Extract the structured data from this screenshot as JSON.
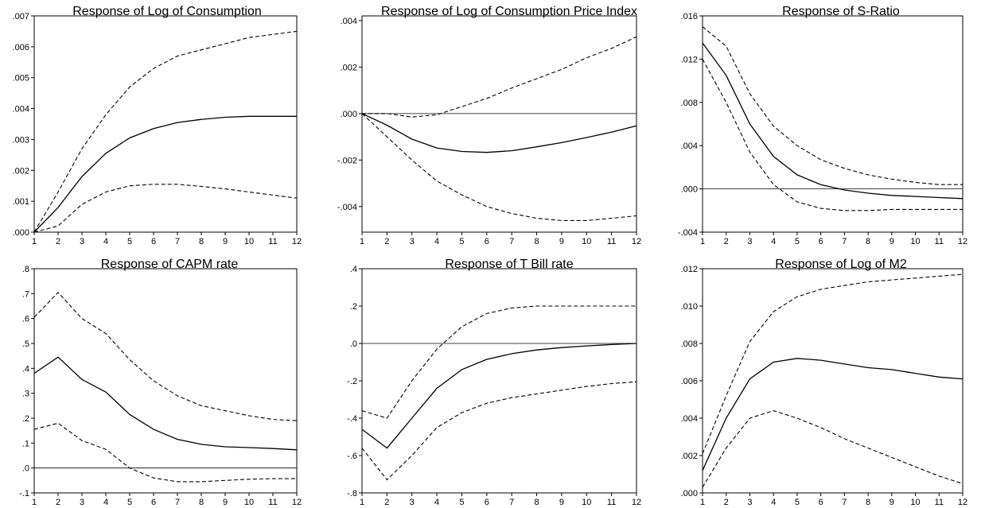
{
  "colors": {
    "line": "#000000",
    "background": "#ffffff"
  },
  "chart_data": [
    {
      "type": "line",
      "title": "Response of Log of Consumption",
      "x": [
        1,
        2,
        3,
        4,
        5,
        6,
        7,
        8,
        9,
        10,
        11,
        12
      ],
      "xticks": [
        "1",
        "2",
        "3",
        "4",
        "5",
        "6",
        "7",
        "8",
        "9",
        "10",
        "11",
        "12"
      ],
      "ylim": [
        0,
        0.007
      ],
      "yticks": [
        {
          "v": 0.0,
          "label": ".000"
        },
        {
          "v": 0.001,
          "label": ".001"
        },
        {
          "v": 0.002,
          "label": ".002"
        },
        {
          "v": 0.003,
          "label": ".003"
        },
        {
          "v": 0.004,
          "label": ".004"
        },
        {
          "v": 0.005,
          "label": ".005"
        },
        {
          "v": 0.006,
          "label": ".006"
        },
        {
          "v": 0.007,
          "label": ".007"
        }
      ],
      "zero_line": false,
      "series": [
        {
          "style": "solid",
          "values": [
            0.0,
            0.0008,
            0.0018,
            0.00255,
            0.00305,
            0.00335,
            0.00355,
            0.00365,
            0.00372,
            0.00375,
            0.00375,
            0.00375
          ]
        },
        {
          "style": "dashed",
          "values": [
            0.0,
            0.0013,
            0.0027,
            0.0038,
            0.0047,
            0.0053,
            0.0057,
            0.0059,
            0.0061,
            0.0063,
            0.0064,
            0.0065
          ]
        },
        {
          "style": "dashed",
          "values": [
            0.0,
            0.0002,
            0.0009,
            0.0013,
            0.0015,
            0.00155,
            0.00155,
            0.00148,
            0.0014,
            0.0013,
            0.0012,
            0.0011
          ]
        }
      ]
    },
    {
      "type": "line",
      "title": "Response of Log of Consumption Price Index",
      "x": [
        1,
        2,
        3,
        4,
        5,
        6,
        7,
        8,
        9,
        10,
        11,
        12
      ],
      "xticks": [
        "1",
        "2",
        "3",
        "4",
        "5",
        "6",
        "7",
        "8",
        "9",
        "10",
        "11",
        "12"
      ],
      "ylim": [
        -0.0051,
        0.0042
      ],
      "yticks": [
        {
          "v": -0.004,
          "label": "-.004"
        },
        {
          "v": -0.002,
          "label": "-.002"
        },
        {
          "v": 0.0,
          "label": ".000"
        },
        {
          "v": 0.002,
          "label": ".002"
        },
        {
          "v": 0.004,
          "label": ".004"
        }
      ],
      "zero_line": true,
      "series": [
        {
          "style": "solid",
          "values": [
            0.0,
            -0.0005,
            -0.0011,
            -0.00148,
            -0.00163,
            -0.00167,
            -0.0016,
            -0.00143,
            -0.00125,
            -0.00103,
            -0.0008,
            -0.00053
          ]
        },
        {
          "style": "dashed",
          "values": [
            0.0,
            0.0,
            -0.00015,
            -5e-05,
            0.0003,
            0.00065,
            0.0011,
            0.0015,
            0.0019,
            0.0024,
            0.0028,
            0.0033
          ]
        },
        {
          "style": "dashed",
          "values": [
            0.0,
            -0.001,
            -0.002,
            -0.0029,
            -0.0035,
            -0.004,
            -0.0043,
            -0.0045,
            -0.0046,
            -0.0046,
            -0.0045,
            -0.0044
          ]
        }
      ]
    },
    {
      "type": "line",
      "title": "Response of S-Ratio",
      "x": [
        1,
        2,
        3,
        4,
        5,
        6,
        7,
        8,
        9,
        10,
        11,
        12
      ],
      "xticks": [
        "1",
        "2",
        "3",
        "4",
        "5",
        "6",
        "7",
        "8",
        "9",
        "10",
        "11",
        "12"
      ],
      "ylim": [
        -0.004,
        0.016
      ],
      "yticks": [
        {
          "v": -0.004,
          "label": "-.004"
        },
        {
          "v": 0.0,
          "label": ".000"
        },
        {
          "v": 0.004,
          "label": ".004"
        },
        {
          "v": 0.008,
          "label": ".008"
        },
        {
          "v": 0.012,
          "label": ".012"
        },
        {
          "v": 0.016,
          "label": ".016"
        }
      ],
      "zero_line": true,
      "series": [
        {
          "style": "solid",
          "values": [
            0.0135,
            0.0105,
            0.006,
            0.003,
            0.0013,
            0.0004,
            -0.0001,
            -0.0004,
            -0.0006,
            -0.0007,
            -0.0008,
            -0.0009
          ]
        },
        {
          "style": "dashed",
          "values": [
            0.015,
            0.0132,
            0.0088,
            0.0058,
            0.004,
            0.0027,
            0.0019,
            0.0013,
            0.0009,
            0.0006,
            0.0004,
            0.0004
          ]
        },
        {
          "style": "dashed",
          "values": [
            0.012,
            0.008,
            0.0034,
            0.0004,
            -0.0012,
            -0.0018,
            -0.002,
            -0.002,
            -0.0019,
            -0.0019,
            -0.0019,
            -0.0019
          ]
        }
      ]
    },
    {
      "type": "line",
      "title": "Response of CAPM rate",
      "x": [
        1,
        2,
        3,
        4,
        5,
        6,
        7,
        8,
        9,
        10,
        11,
        12
      ],
      "xticks": [
        "1",
        "2",
        "3",
        "4",
        "5",
        "6",
        "7",
        "8",
        "9",
        "10",
        "11",
        "12"
      ],
      "ylim": [
        -0.1,
        0.8
      ],
      "yticks": [
        {
          "v": -0.1,
          "label": "-.1"
        },
        {
          "v": 0.0,
          "label": ".0"
        },
        {
          "v": 0.1,
          "label": ".1"
        },
        {
          "v": 0.2,
          "label": ".2"
        },
        {
          "v": 0.3,
          "label": ".3"
        },
        {
          "v": 0.4,
          "label": ".4"
        },
        {
          "v": 0.5,
          "label": ".5"
        },
        {
          "v": 0.6,
          "label": ".6"
        },
        {
          "v": 0.7,
          "label": ".7"
        },
        {
          "v": 0.8,
          "label": ".8"
        }
      ],
      "zero_line": true,
      "series": [
        {
          "style": "solid",
          "values": [
            0.38,
            0.445,
            0.355,
            0.305,
            0.215,
            0.155,
            0.115,
            0.095,
            0.085,
            0.082,
            0.078,
            0.073
          ]
        },
        {
          "style": "dashed",
          "values": [
            0.605,
            0.705,
            0.6,
            0.54,
            0.435,
            0.35,
            0.29,
            0.25,
            0.23,
            0.21,
            0.195,
            0.19
          ]
        },
        {
          "style": "dashed",
          "values": [
            0.155,
            0.18,
            0.11,
            0.075,
            0.0,
            -0.04,
            -0.055,
            -0.055,
            -0.05,
            -0.045,
            -0.043,
            -0.043
          ]
        }
      ]
    },
    {
      "type": "line",
      "title": "Response of T Bill rate",
      "x": [
        1,
        2,
        3,
        4,
        5,
        6,
        7,
        8,
        9,
        10,
        11,
        12
      ],
      "xticks": [
        "1",
        "2",
        "3",
        "4",
        "5",
        "6",
        "7",
        "8",
        "9",
        "10",
        "11",
        "12"
      ],
      "ylim": [
        -0.8,
        0.4
      ],
      "yticks": [
        {
          "v": -0.8,
          "label": "-.8"
        },
        {
          "v": -0.6,
          "label": "-.6"
        },
        {
          "v": -0.4,
          "label": "-.4"
        },
        {
          "v": -0.2,
          "label": "-.2"
        },
        {
          "v": 0.0,
          "label": ".0"
        },
        {
          "v": 0.2,
          "label": ".2"
        },
        {
          "v": 0.4,
          "label": ".4"
        }
      ],
      "zero_line": true,
      "series": [
        {
          "style": "solid",
          "values": [
            -0.46,
            -0.56,
            -0.4,
            -0.24,
            -0.14,
            -0.085,
            -0.055,
            -0.035,
            -0.022,
            -0.013,
            -0.006,
            0.0
          ]
        },
        {
          "style": "dashed",
          "values": [
            -0.36,
            -0.4,
            -0.2,
            -0.03,
            0.09,
            0.16,
            0.19,
            0.2,
            0.2,
            0.2,
            0.2,
            0.2
          ]
        },
        {
          "style": "dashed",
          "values": [
            -0.56,
            -0.73,
            -0.6,
            -0.45,
            -0.37,
            -0.32,
            -0.29,
            -0.27,
            -0.25,
            -0.23,
            -0.215,
            -0.205
          ]
        }
      ]
    },
    {
      "type": "line",
      "title": "Response of Log of M2",
      "x": [
        1,
        2,
        3,
        4,
        5,
        6,
        7,
        8,
        9,
        10,
        11,
        12
      ],
      "xticks": [
        "1",
        "2",
        "3",
        "4",
        "5",
        "6",
        "7",
        "8",
        "9",
        "10",
        "11",
        "12"
      ],
      "ylim": [
        0,
        0.012
      ],
      "yticks": [
        {
          "v": 0.0,
          "label": ".000"
        },
        {
          "v": 0.002,
          "label": ".002"
        },
        {
          "v": 0.004,
          "label": ".004"
        },
        {
          "v": 0.006,
          "label": ".006"
        },
        {
          "v": 0.008,
          "label": ".008"
        },
        {
          "v": 0.01,
          "label": ".010"
        },
        {
          "v": 0.012,
          "label": ".012"
        }
      ],
      "zero_line": false,
      "series": [
        {
          "style": "solid",
          "values": [
            0.0012,
            0.004,
            0.0061,
            0.007,
            0.0072,
            0.0071,
            0.0069,
            0.0067,
            0.0066,
            0.0064,
            0.0062,
            0.0061
          ]
        },
        {
          "style": "dashed",
          "values": [
            0.0021,
            0.0052,
            0.0081,
            0.0097,
            0.0105,
            0.0109,
            0.0111,
            0.0113,
            0.0114,
            0.0115,
            0.0116,
            0.0117
          ]
        },
        {
          "style": "dashed",
          "values": [
            0.0003,
            0.0024,
            0.004,
            0.0044,
            0.004,
            0.0035,
            0.0029,
            0.0024,
            0.0019,
            0.0014,
            0.0009,
            0.0005
          ]
        }
      ]
    }
  ]
}
